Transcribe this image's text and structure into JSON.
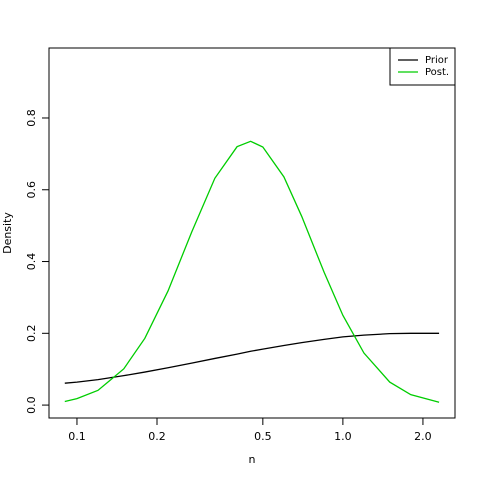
{
  "chart_data": {
    "type": "line",
    "x_label": "n",
    "y_label": "Density",
    "x": [
      0.09,
      0.1,
      0.12,
      0.15,
      0.18,
      0.22,
      0.27,
      0.33,
      0.4,
      0.45,
      0.5,
      0.6,
      0.7,
      0.85,
      1.0,
      1.2,
      1.5,
      1.8,
      2.3
    ],
    "series": [
      {
        "name": "Prior",
        "color": "#000000",
        "values": [
          0.061,
          0.064,
          0.071,
          0.082,
          0.092,
          0.104,
          0.117,
          0.13,
          0.142,
          0.15,
          0.156,
          0.166,
          0.174,
          0.183,
          0.19,
          0.195,
          0.199,
          0.2,
          0.2
        ]
      },
      {
        "name": "Post.",
        "color": "#00cd00",
        "values": [
          0.01,
          0.018,
          0.041,
          0.101,
          0.186,
          0.318,
          0.482,
          0.632,
          0.72,
          0.735,
          0.719,
          0.636,
          0.526,
          0.37,
          0.25,
          0.145,
          0.064,
          0.029,
          0.008
        ]
      }
    ],
    "xlim": [
      0.0785,
      2.64
    ],
    "x_log": true,
    "xticks": [
      0.1,
      0.2,
      0.5,
      {
        "value": 1,
        "label": "1.0"
      },
      {
        "value": 2,
        "label": "2.0"
      }
    ],
    "ylim": [
      -0.036,
      0.995
    ],
    "yticks": [
      {
        "value": 0,
        "label": "0.0"
      },
      0.2,
      0.4,
      0.6,
      0.8
    ],
    "legend": "topright"
  }
}
